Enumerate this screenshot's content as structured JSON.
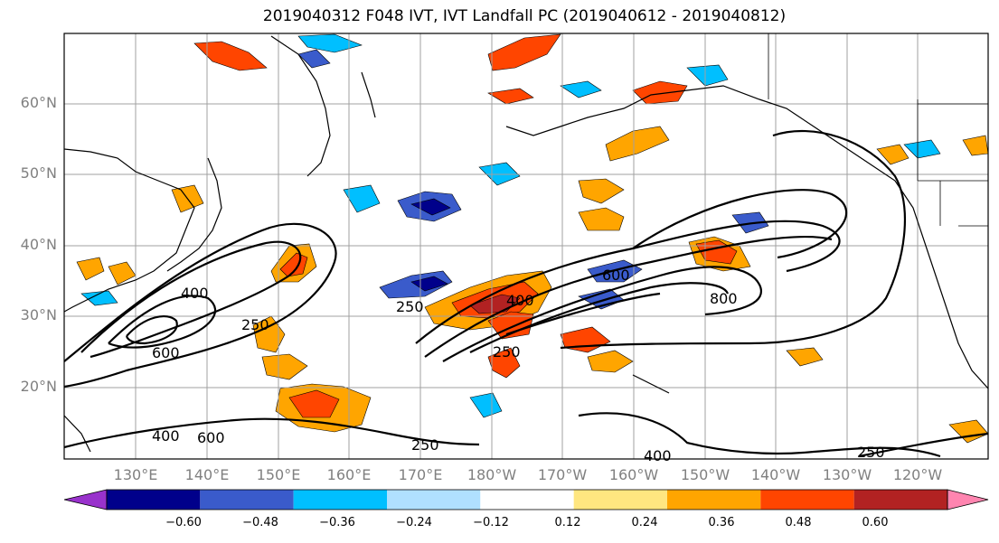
{
  "title": "2019040312 F048 IVT, IVT Landfall PC (2019040612 - 2019040812)",
  "lat_labels": [
    "60°N",
    "50°N",
    "40°N",
    "30°N",
    "20°N"
  ],
  "lon_labels": [
    "130°E",
    "140°E",
    "150°E",
    "160°E",
    "170°E",
    "180°W",
    "170°W",
    "160°W",
    "150°W",
    "140°W",
    "130°W",
    "120°W"
  ],
  "contour_labels": [
    "400",
    "600",
    "250",
    "250",
    "400",
    "600",
    "800",
    "250",
    "400",
    "600",
    "250",
    "400",
    "250"
  ],
  "colorbar": {
    "ticks": [
      "−0.60",
      "−0.48",
      "−0.36",
      "−0.24",
      "−0.12",
      "0.12",
      "0.24",
      "0.36",
      "0.48",
      "0.60"
    ],
    "colors": [
      "#9932cc",
      "#00008b",
      "#3a5bcb",
      "#00bfff",
      "#b0e0ff",
      "#ffffff",
      "#ffe680",
      "#ffa500",
      "#ff4500",
      "#b22222",
      "#ff85b0"
    ]
  }
}
